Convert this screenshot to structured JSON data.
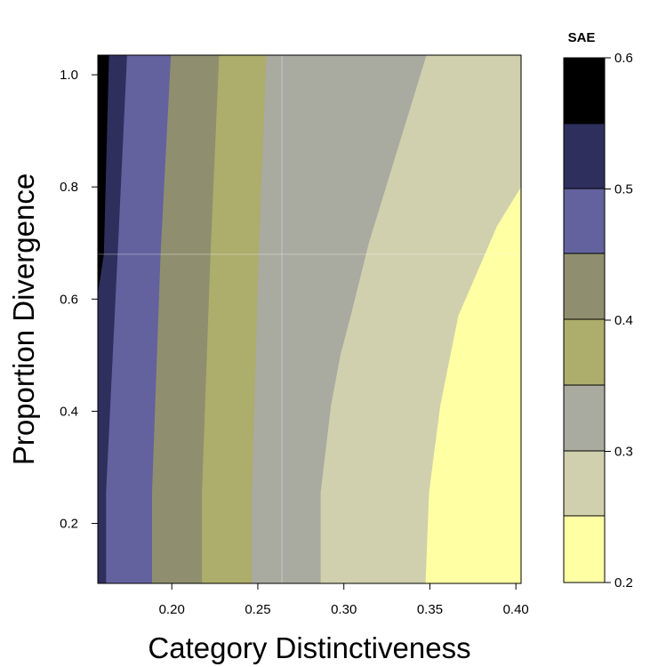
{
  "chart_data": {
    "type": "contour",
    "xlabel": "Category Distinctiveness",
    "ylabel": "Proportion Divergence",
    "xlim": [
      0.157,
      0.403
    ],
    "ylim": [
      0.093,
      1.035
    ],
    "x_ticks": [
      0.2,
      0.25,
      0.3,
      0.35,
      0.4
    ],
    "x_tick_labels": [
      "0.20",
      "0.25",
      "0.30",
      "0.35",
      "0.40"
    ],
    "y_ticks": [
      0.2,
      0.4,
      0.6,
      0.8,
      1.0
    ],
    "y_tick_labels": [
      "0.2",
      "0.4",
      "0.6",
      "0.8",
      "1.0"
    ],
    "grid": true,
    "colorbar": {
      "title": "SAE",
      "ticks": [
        0.2,
        0.3,
        0.4,
        0.5,
        0.6
      ],
      "tick_labels": [
        "0.2",
        "0.3",
        "0.4",
        "0.5",
        "0.6"
      ],
      "levels": [
        0.2,
        0.25,
        0.275,
        0.3,
        0.35,
        0.375,
        0.4,
        0.45,
        0.475,
        0.5,
        0.55,
        0.6
      ],
      "band_colors": [
        "#ffffa4",
        "#d0d0ae",
        "#a9aaa0",
        "#adad6c",
        "#8f8f6f",
        "#63629e",
        "#2f2f5e",
        "#000000"
      ]
    },
    "contour_boundaries": [
      {
        "upper_level": 0.55,
        "points": [
          [
            0.157,
            0.61
          ],
          [
            0.1605,
            0.68
          ],
          [
            0.1635,
            1.035
          ]
        ]
      },
      {
        "upper_level": 0.5,
        "points": [
          [
            0.1618,
            0.093
          ],
          [
            0.1618,
            0.255
          ],
          [
            0.1685,
            0.68
          ],
          [
            0.174,
            1.035
          ]
        ]
      },
      {
        "upper_level": 0.45,
        "points": [
          [
            0.1885,
            0.093
          ],
          [
            0.1885,
            0.255
          ],
          [
            0.1935,
            0.68
          ],
          [
            0.1995,
            1.035
          ]
        ]
      },
      {
        "upper_level": 0.4,
        "points": [
          [
            0.2175,
            0.093
          ],
          [
            0.2175,
            0.255
          ],
          [
            0.2225,
            0.68
          ],
          [
            0.2275,
            1.035
          ]
        ]
      },
      {
        "upper_level": 0.375,
        "points": [
          [
            0.2465,
            0.093
          ],
          [
            0.2465,
            0.255
          ],
          [
            0.2505,
            0.68
          ],
          [
            0.255,
            1.035
          ]
        ]
      },
      {
        "upper_level": 0.35,
        "points": [
          [
            0.2865,
            0.093
          ],
          [
            0.2865,
            0.255
          ],
          [
            0.2925,
            0.41
          ],
          [
            0.298,
            0.5
          ],
          [
            0.304,
            0.57
          ],
          [
            0.3145,
            0.7
          ],
          [
            0.3295,
            0.85
          ],
          [
            0.3405,
            0.96
          ],
          [
            0.348,
            1.035
          ]
        ]
      },
      {
        "upper_level": 0.3,
        "points": [
          [
            0.3475,
            0.093
          ],
          [
            0.3495,
            0.255
          ],
          [
            0.356,
            0.41
          ],
          [
            0.3665,
            0.57
          ],
          [
            0.382,
            0.68
          ],
          [
            0.389,
            0.73
          ],
          [
            0.403,
            0.8
          ]
        ]
      }
    ]
  }
}
